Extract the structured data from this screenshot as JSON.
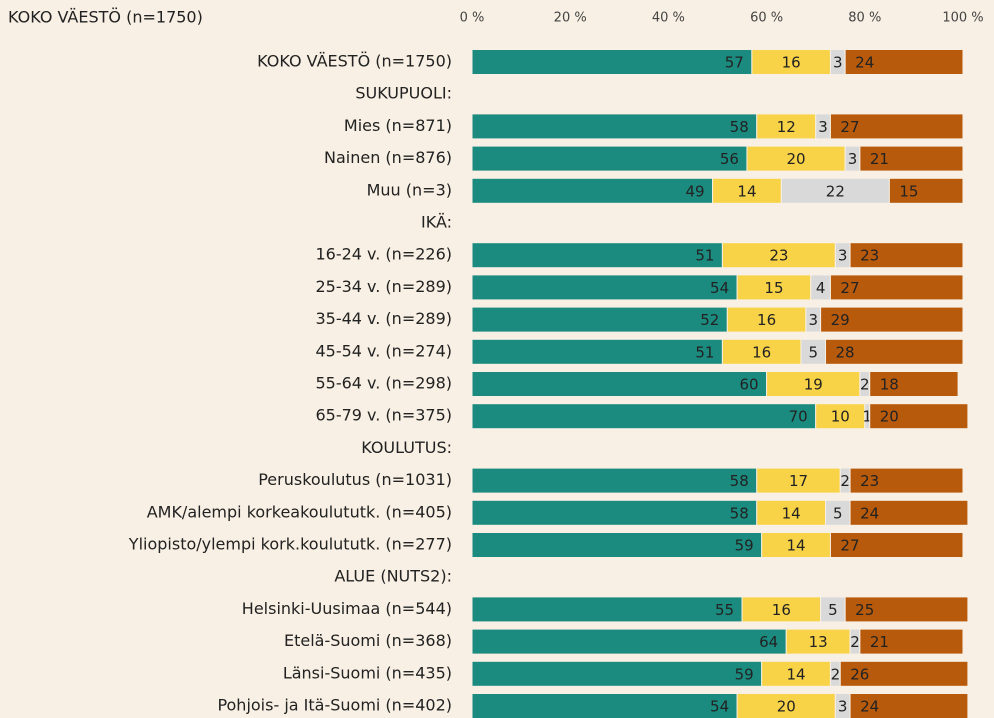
{
  "chart_data": {
    "type": "stacked-barh",
    "title": "KOKO VÄESTÖ (n=1750)",
    "categories": [
      "KOKO VÄESTÖ (n=1750)",
      "SUKUPUOLI:",
      "Mies (n=871)",
      "Nainen (n=876)",
      "Muu (n=3)",
      "IKÄ:",
      "16-24 v. (n=226)",
      "25-34 v. (n=289)",
      "35-44 v. (n=289)",
      "45-54 v. (n=274)",
      "55-64 v. (n=298)",
      "65-79 v. (n=375)",
      "KOULUTUS:",
      "Peruskoulutus (n=1031)",
      "AMK/alempi korkeakoulututk. (n=405)",
      "Yliopisto/ylempi kork.koulututk. (n=277)",
      "ALUE (NUTS2):",
      "Helsinki-Uusimaa (n=544)",
      "Etelä-Suomi (n=368)",
      "Länsi-Suomi (n=435)",
      "Pohjois- ja Itä-Suomi (n=402)"
    ],
    "series": [
      {
        "color": "#1b8a7f",
        "values": [
          57,
          null,
          58,
          56,
          49,
          null,
          51,
          54,
          52,
          51,
          60,
          70,
          null,
          58,
          58,
          59,
          null,
          55,
          64,
          59,
          54
        ]
      },
      {
        "color": "#f8d247",
        "values": [
          16,
          null,
          12,
          20,
          14,
          null,
          23,
          15,
          16,
          16,
          19,
          10,
          null,
          17,
          14,
          14,
          null,
          16,
          13,
          14,
          20
        ]
      },
      {
        "color": "#d9d9d9",
        "values": [
          3,
          null,
          3,
          3,
          22,
          null,
          3,
          4,
          3,
          5,
          2,
          1,
          null,
          2,
          5,
          null,
          null,
          5,
          2,
          2,
          3
        ]
      },
      {
        "color": "#b85a0c",
        "values": [
          24,
          null,
          27,
          21,
          15,
          null,
          23,
          27,
          29,
          28,
          18,
          20,
          null,
          23,
          24,
          27,
          null,
          25,
          21,
          26,
          24
        ]
      }
    ],
    "xlim": [
      0,
      100
    ],
    "xticks": [
      {
        "value": 0,
        "label": "0 %"
      },
      {
        "value": 20,
        "label": "20 %"
      },
      {
        "value": 40,
        "label": "40 %"
      },
      {
        "value": 60,
        "label": "60 %"
      },
      {
        "value": 80,
        "label": "80 %"
      },
      {
        "value": 100,
        "label": "100 %"
      }
    ]
  }
}
